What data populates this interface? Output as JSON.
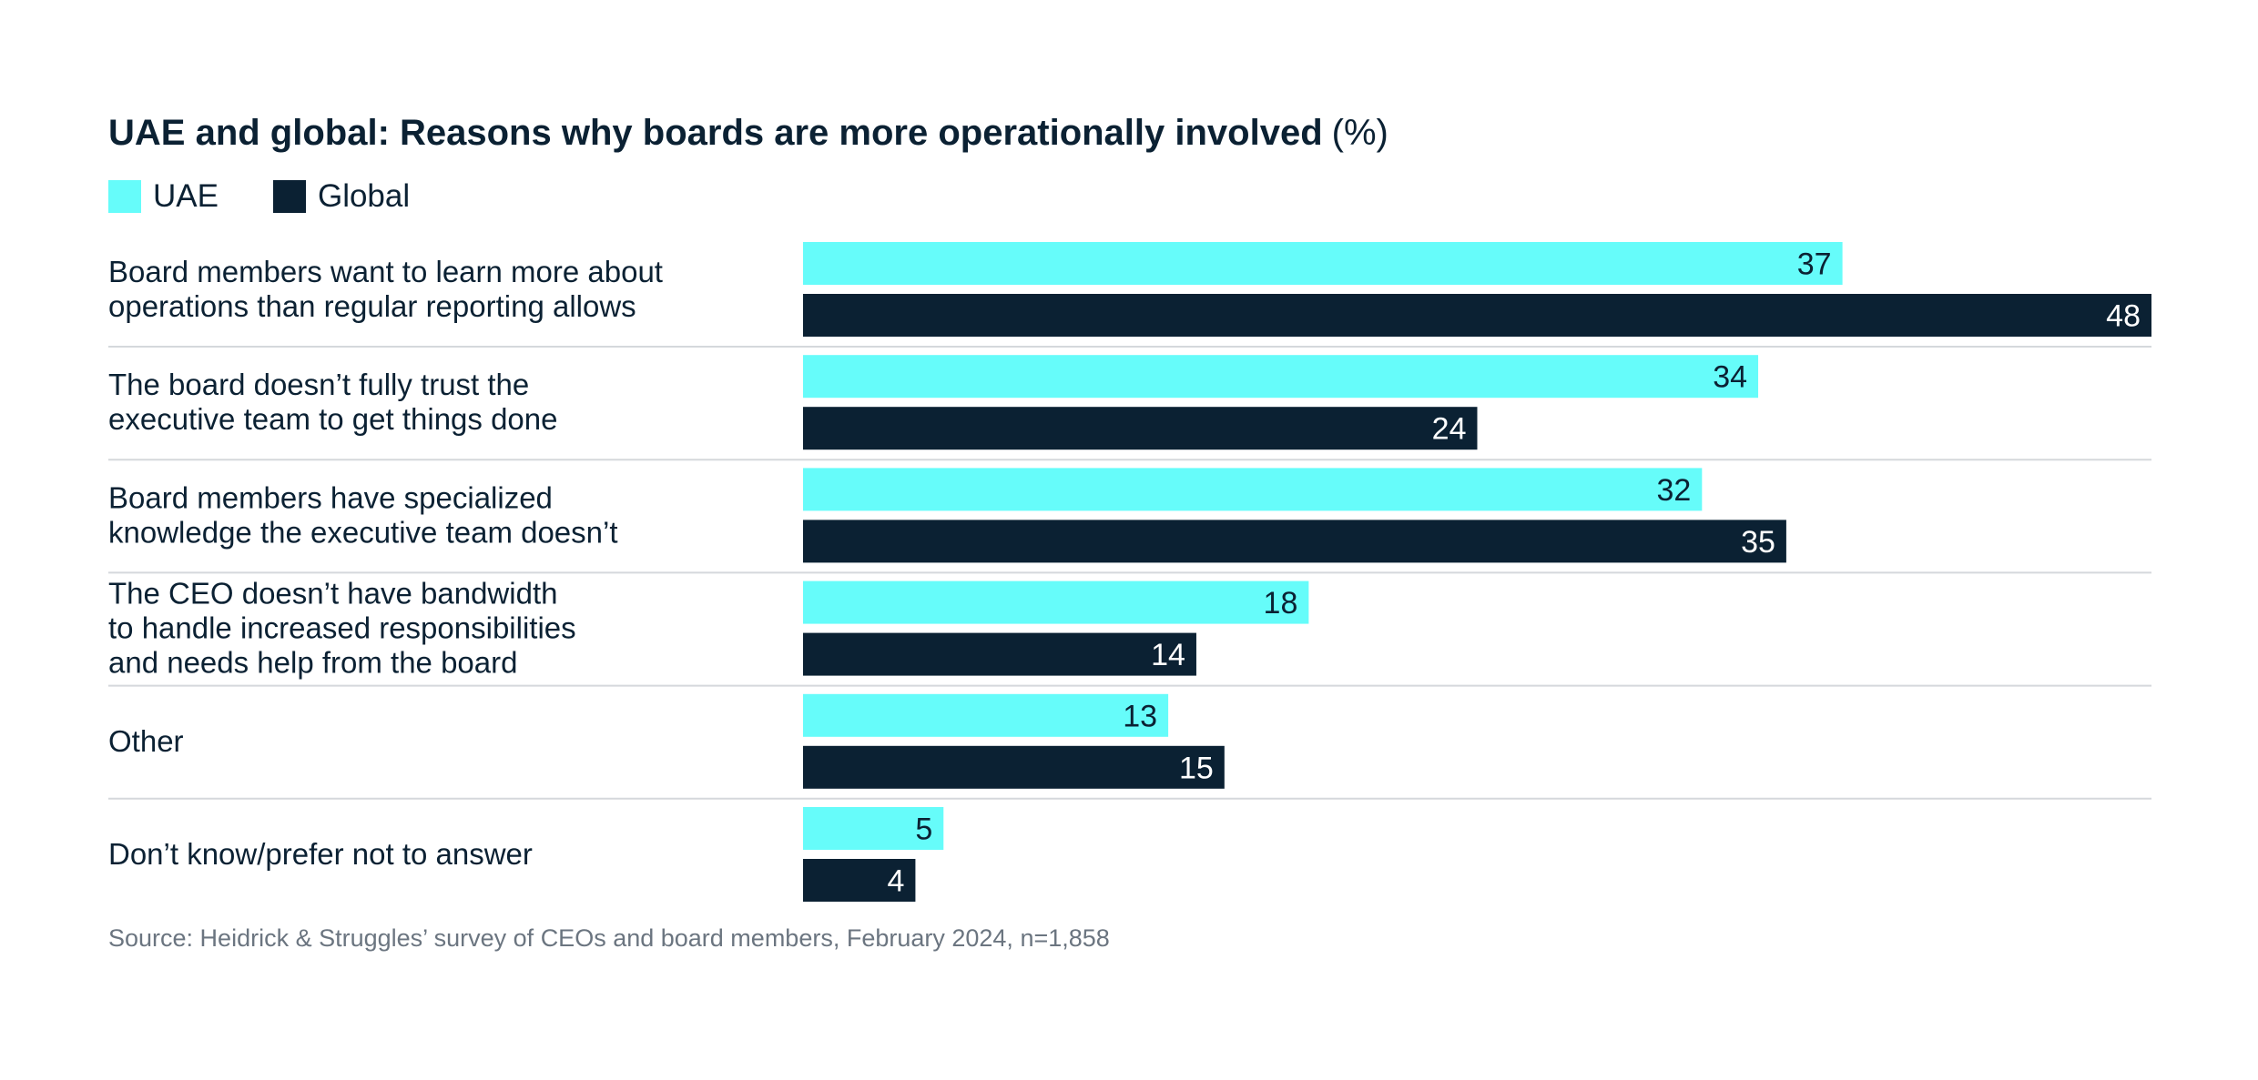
{
  "chart_data": {
    "type": "bar",
    "orientation": "horizontal",
    "title": "UAE and global: Reasons why boards are more operationally involved",
    "title_unit": "(%)",
    "categories": [
      [
        "Board members want to learn more about",
        "operations than regular reporting allows"
      ],
      [
        "The board doesn’t fully trust the",
        "executive team to get things done"
      ],
      [
        "Board members have specialized",
        "knowledge the executive team doesn’t"
      ],
      [
        "The CEO doesn’t have bandwidth",
        "to handle increased responsibilities",
        "and needs help from the board"
      ],
      [
        "Other"
      ],
      [
        "Don’t know/prefer not to answer"
      ]
    ],
    "series": [
      {
        "name": "UAE",
        "color": "#66fcfa",
        "label_color": "#0b2133",
        "values": [
          37,
          34,
          32,
          18,
          13,
          5
        ]
      },
      {
        "name": "Global",
        "color": "#0b2133",
        "label_color": "#ffffff",
        "values": [
          48,
          24,
          35,
          14,
          15,
          4
        ]
      }
    ],
    "xlim": [
      0,
      48
    ],
    "grid": false,
    "legend": "top-left",
    "source": "Source: Heidrick & Struggles’ survey of CEOs and board members, February 2024, n=1,858"
  },
  "colors": {
    "text": "#0b2133",
    "separator": "#d5d8dc",
    "source_text": "#6b7580"
  }
}
